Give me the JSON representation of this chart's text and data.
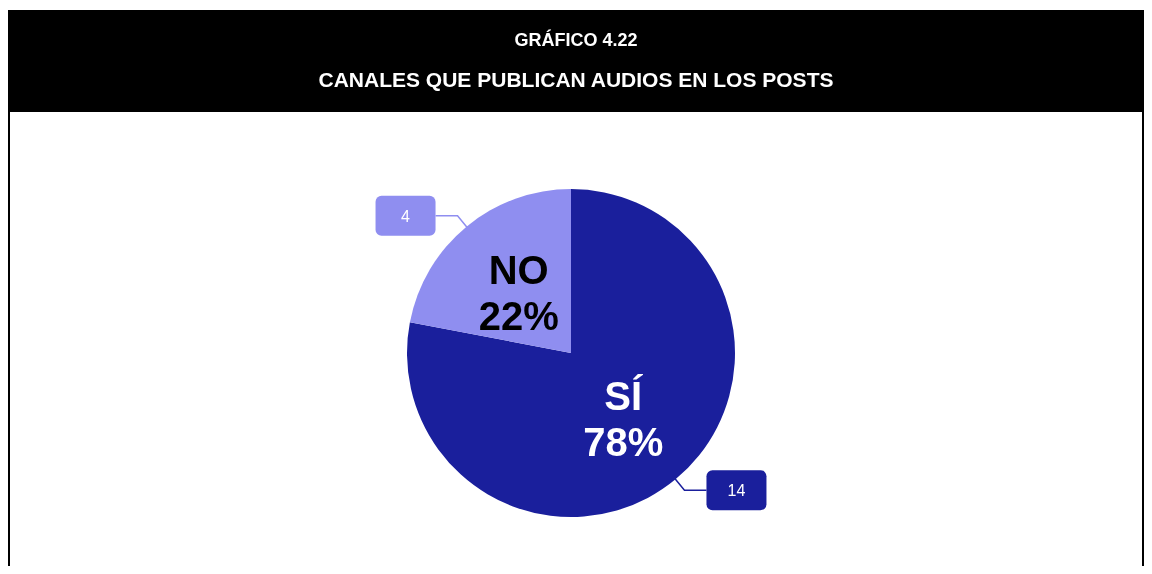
{
  "chart_data": {
    "type": "pie",
    "title": "GRÁFICO 4.22",
    "subtitle": "CANALES QUE PUBLICAN AUDIOS EN LOS POSTS",
    "categories": [
      "SÍ",
      "NO"
    ],
    "values": [
      78,
      22
    ],
    "colors": [
      "#1a1f9c",
      "#8f8ef0"
    ],
    "value_labels": [
      "78%",
      "22%"
    ],
    "annotations": [
      {
        "text": "14",
        "x": "SÍ"
      },
      {
        "text": "4",
        "x": "NO"
      }
    ]
  }
}
